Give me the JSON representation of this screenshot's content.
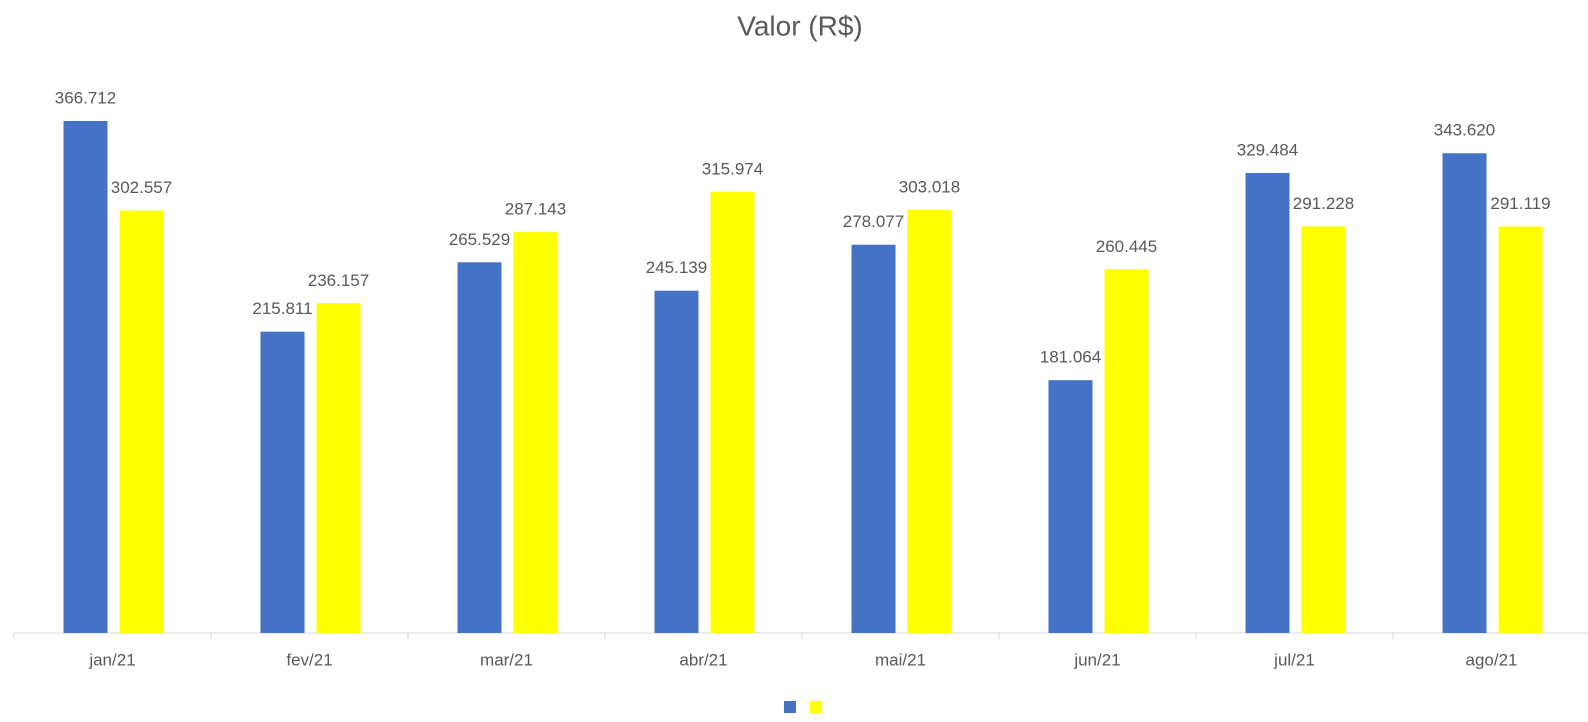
{
  "chart_data": {
    "type": "bar",
    "title": "Valor (R$)",
    "categories": [
      "jan/21",
      "fev/21",
      "mar/21",
      "abr/21",
      "mai/21",
      "jun/21",
      "jul/21",
      "ago/21"
    ],
    "series": [
      {
        "color": "#4472c4",
        "values": [
          366712,
          215811,
          265529,
          245139,
          278077,
          181064,
          329484,
          343620
        ],
        "value_labels": [
          "366.712",
          "215.811",
          "265.529",
          "245.139",
          "278.077",
          "181.064",
          "329.484",
          "343.620"
        ]
      },
      {
        "color": "#ffff00",
        "values": [
          302557,
          236157,
          287143,
          315974,
          303018,
          260445,
          291228,
          291119
        ],
        "value_labels": [
          "302.557",
          "236.157",
          "287.143",
          "315.974",
          "303.018",
          "260.445",
          "291.228",
          "291.119"
        ]
      }
    ]
  }
}
